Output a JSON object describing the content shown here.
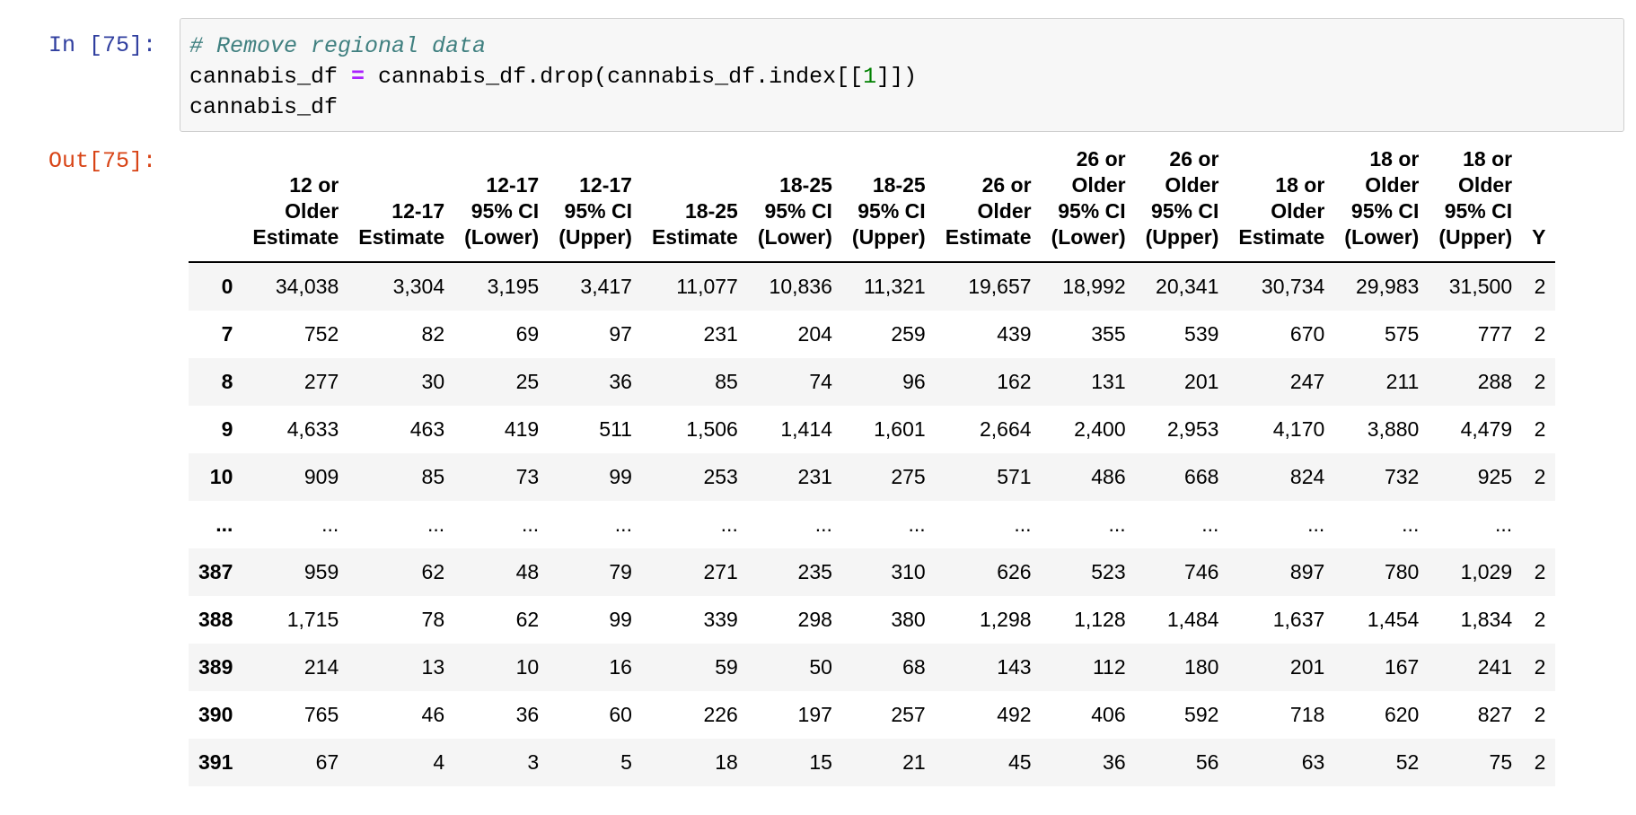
{
  "input_cell": {
    "prompt": "In [75]:",
    "code": {
      "comment": "# Remove regional data",
      "line2_a": "cannabis_df ",
      "line2_op": "=",
      "line2_b": " cannabis_df.drop(cannabis_df.index[[",
      "line2_num": "1",
      "line2_c": "]])",
      "line3": "cannabis_df"
    }
  },
  "output_cell": {
    "prompt": "Out[75]:",
    "table": {
      "index_header": "",
      "columns": [
        "12 or\nOlder\nEstimate",
        "12-17\nEstimate",
        "12-17\n95% CI\n(Lower)",
        "12-17\n95% CI\n(Upper)",
        "18-25\nEstimate",
        "18-25\n95% CI\n(Lower)",
        "18-25\n95% CI\n(Upper)",
        "26 or\nOlder\nEstimate",
        "26 or\nOlder\n95% CI\n(Lower)",
        "26 or\nOlder\n95% CI\n(Upper)",
        "18 or\nOlder\nEstimate",
        "18 or\nOlder\n95% CI\n(Lower)",
        "18 or\nOlder\n95% CI\n(Upper)",
        "Y"
      ],
      "rows": [
        {
          "index": "0",
          "values": [
            "34,038",
            "3,304",
            "3,195",
            "3,417",
            "11,077",
            "10,836",
            "11,321",
            "19,657",
            "18,992",
            "20,341",
            "30,734",
            "29,983",
            "31,500",
            "2"
          ]
        },
        {
          "index": "7",
          "values": [
            "752",
            "82",
            "69",
            "97",
            "231",
            "204",
            "259",
            "439",
            "355",
            "539",
            "670",
            "575",
            "777",
            "2"
          ]
        },
        {
          "index": "8",
          "values": [
            "277",
            "30",
            "25",
            "36",
            "85",
            "74",
            "96",
            "162",
            "131",
            "201",
            "247",
            "211",
            "288",
            "2"
          ]
        },
        {
          "index": "9",
          "values": [
            "4,633",
            "463",
            "419",
            "511",
            "1,506",
            "1,414",
            "1,601",
            "2,664",
            "2,400",
            "2,953",
            "4,170",
            "3,880",
            "4,479",
            "2"
          ]
        },
        {
          "index": "10",
          "values": [
            "909",
            "85",
            "73",
            "99",
            "253",
            "231",
            "275",
            "571",
            "486",
            "668",
            "824",
            "732",
            "925",
            "2"
          ]
        },
        {
          "index": "...",
          "values": [
            "...",
            "...",
            "...",
            "...",
            "...",
            "...",
            "...",
            "...",
            "...",
            "...",
            "...",
            "...",
            "...",
            ""
          ]
        },
        {
          "index": "387",
          "values": [
            "959",
            "62",
            "48",
            "79",
            "271",
            "235",
            "310",
            "626",
            "523",
            "746",
            "897",
            "780",
            "1,029",
            "2"
          ]
        },
        {
          "index": "388",
          "values": [
            "1,715",
            "78",
            "62",
            "99",
            "339",
            "298",
            "380",
            "1,298",
            "1,128",
            "1,484",
            "1,637",
            "1,454",
            "1,834",
            "2"
          ]
        },
        {
          "index": "389",
          "values": [
            "214",
            "13",
            "10",
            "16",
            "59",
            "50",
            "68",
            "143",
            "112",
            "180",
            "201",
            "167",
            "241",
            "2"
          ]
        },
        {
          "index": "390",
          "values": [
            "765",
            "46",
            "36",
            "60",
            "226",
            "197",
            "257",
            "492",
            "406",
            "592",
            "718",
            "620",
            "827",
            "2"
          ]
        },
        {
          "index": "391",
          "values": [
            "67",
            "4",
            "3",
            "5",
            "18",
            "15",
            "21",
            "45",
            "36",
            "56",
            "63",
            "52",
            "75",
            "2"
          ]
        }
      ]
    }
  }
}
